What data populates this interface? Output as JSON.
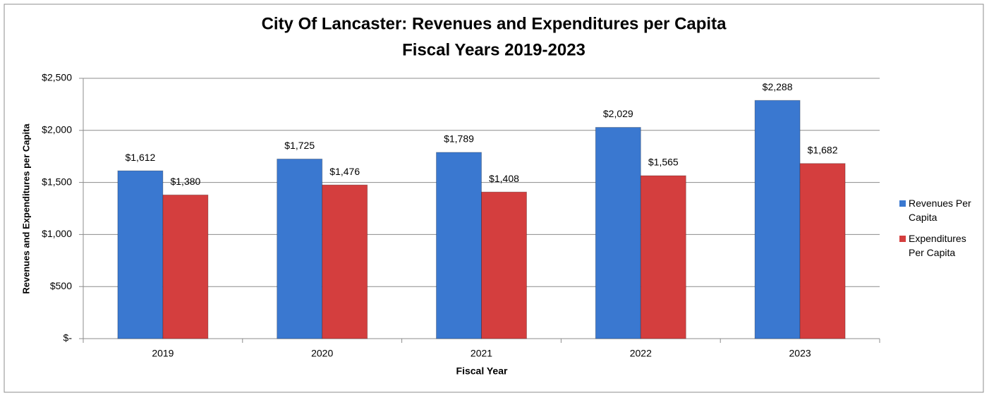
{
  "chart_data": {
    "type": "bar",
    "title": "City Of Lancaster: Revenues and Expenditures per Capita",
    "subtitle": "Fiscal Years 2019-2023",
    "x_label": "Fiscal Year",
    "y_label": "Revenues and Expenditures per Capita",
    "categories": [
      "2019",
      "2020",
      "2021",
      "2022",
      "2023"
    ],
    "series": [
      {
        "name": "Revenues Per Capita",
        "color": "#3a78d0",
        "values": [
          1612,
          1725,
          1789,
          2029,
          2288
        ],
        "value_labels": [
          "$1,612",
          "$1,725",
          "$1,789",
          "$2,029",
          "$2,288"
        ]
      },
      {
        "name": "Expenditures Per Capita",
        "color": "#d43e3e",
        "values": [
          1380,
          1476,
          1408,
          1565,
          1682
        ],
        "value_labels": [
          "$1,380",
          "$1,476",
          "$1,408",
          "$1,565",
          "$1,682"
        ]
      }
    ],
    "ylim": [
      0,
      2500
    ],
    "yticks": [
      {
        "value": 0,
        "label": "$-"
      },
      {
        "value": 500,
        "label": "$500"
      },
      {
        "value": 1000,
        "label": "$1,000"
      },
      {
        "value": 1500,
        "label": "$1,500"
      },
      {
        "value": 2000,
        "label": "$2,000"
      },
      {
        "value": 2500,
        "label": "$2,500"
      }
    ],
    "grid": true,
    "legend": "right"
  }
}
